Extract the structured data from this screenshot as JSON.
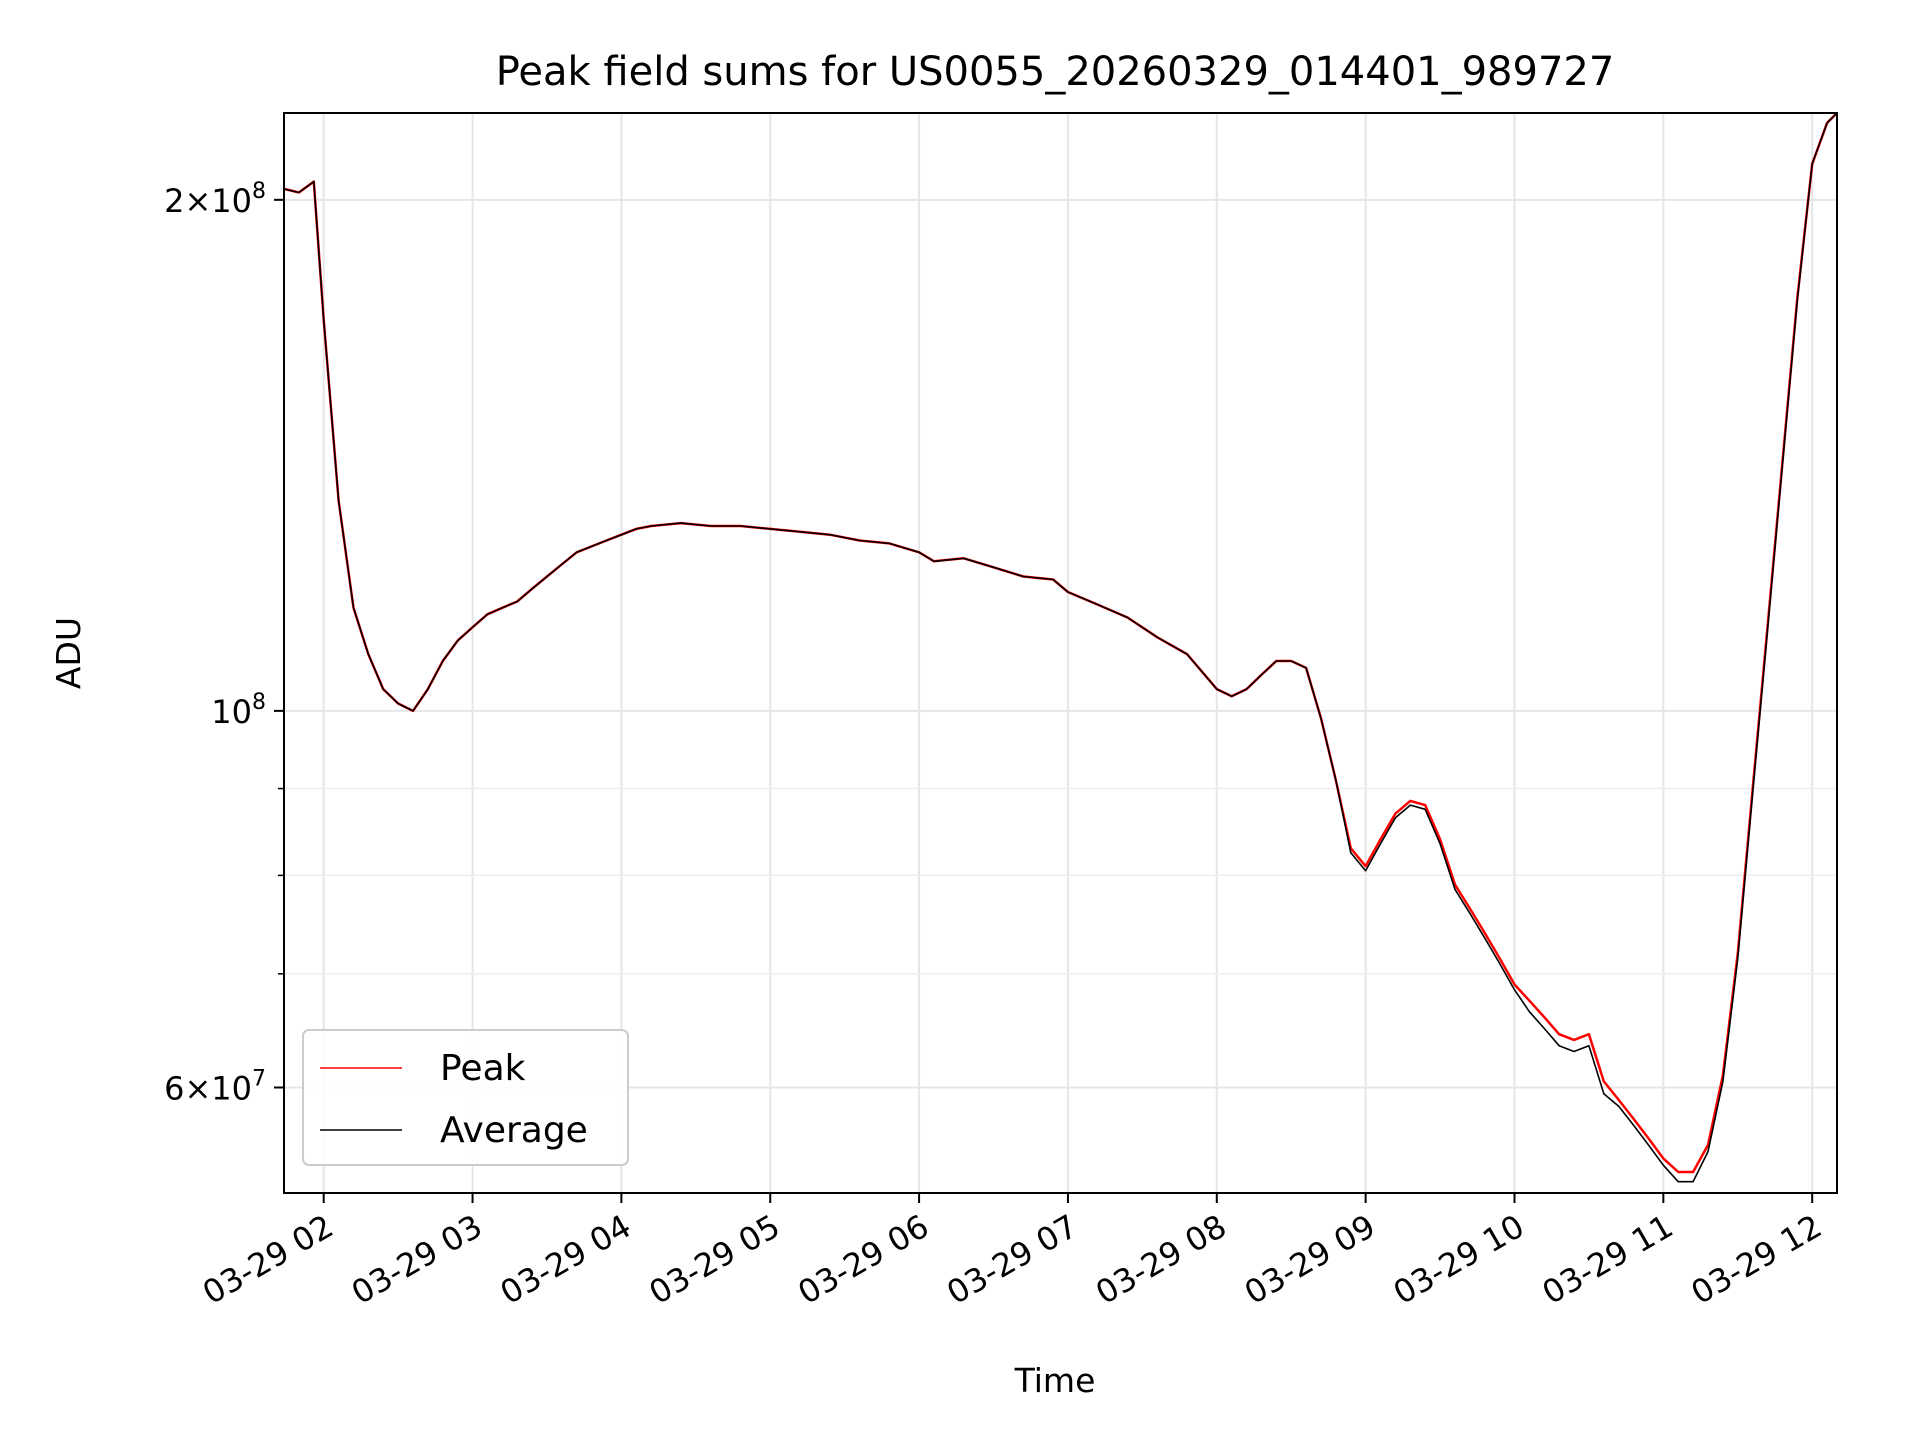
{
  "chart_data": {
    "type": "line",
    "title": "Peak field sums for US0055_20260329_014401_989727",
    "xlabel": "Time",
    "ylabel": "ADU",
    "yscale": "log",
    "grid": true,
    "legend_position": "lower-left",
    "x_ticks": [
      "03-29 02",
      "03-29 03",
      "03-29 04",
      "03-29 05",
      "03-29 06",
      "03-29 07",
      "03-29 08",
      "03-29 09",
      "03-29 10",
      "03-29 11",
      "03-29 12"
    ],
    "xlim": [
      "2026-03-29 01:44",
      "2026-03-29 12:10"
    ],
    "y_major_ticks": [
      {
        "value": 100000000,
        "base": "10",
        "exp": "8"
      },
      {
        "value": 60000000,
        "mantissa": "6",
        "base": "10",
        "exp": "7"
      },
      {
        "value": 200000000,
        "mantissa": "2",
        "base": "10",
        "exp": "8"
      }
    ],
    "y_minor_ticks": [
      70000000,
      80000000,
      90000000
    ],
    "ylim": [
      52000000,
      225000000
    ],
    "x": [
      "01:44",
      "01:50",
      "01:56",
      "02:00",
      "02:06",
      "02:12",
      "02:18",
      "02:24",
      "02:30",
      "02:36",
      "02:42",
      "02:48",
      "02:54",
      "03:00",
      "03:06",
      "03:12",
      "03:18",
      "03:24",
      "03:30",
      "03:36",
      "03:42",
      "03:48",
      "03:54",
      "04:00",
      "04:06",
      "04:12",
      "04:24",
      "04:36",
      "04:48",
      "05:00",
      "05:12",
      "05:24",
      "05:36",
      "05:48",
      "06:00",
      "06:06",
      "06:18",
      "06:30",
      "06:42",
      "06:54",
      "07:00",
      "07:12",
      "07:24",
      "07:36",
      "07:48",
      "08:00",
      "08:06",
      "08:12",
      "08:18",
      "08:24",
      "08:30",
      "08:36",
      "08:42",
      "08:48",
      "08:54",
      "09:00",
      "09:06",
      "09:12",
      "09:18",
      "09:24",
      "09:30",
      "09:36",
      "09:42",
      "09:48",
      "09:54",
      "10:00",
      "10:06",
      "10:12",
      "10:18",
      "10:24",
      "10:30",
      "10:36",
      "10:42",
      "10:48",
      "10:54",
      "11:00",
      "11:06",
      "11:12",
      "11:18",
      "11:24",
      "11:30",
      "11:36",
      "11:42",
      "11:48",
      "11:54",
      "12:00",
      "12:06",
      "12:10"
    ],
    "series": [
      {
        "name": "Peak",
        "color": "#ff0000",
        "values": [
          203000000,
          202000000,
          205000000,
          170000000,
          133000000,
          115000000,
          108000000,
          103000000,
          101000000,
          100000000,
          103000000,
          107000000,
          110000000,
          112000000,
          114000000,
          115000000,
          116000000,
          118000000,
          120000000,
          122000000,
          124000000,
          125000000,
          126000000,
          127000000,
          128000000,
          128500000,
          129000000,
          128500000,
          128500000,
          128000000,
          127500000,
          127000000,
          126000000,
          125500000,
          124000000,
          122500000,
          123000000,
          121500000,
          120000000,
          119500000,
          117500000,
          115500000,
          113500000,
          110500000,
          108000000,
          103000000,
          102000000,
          103000000,
          105000000,
          107000000,
          107000000,
          106000000,
          99000000,
          91000000,
          83000000,
          81000000,
          84000000,
          87000000,
          88500000,
          88000000,
          84000000,
          79000000,
          76500000,
          74000000,
          71500000,
          69000000,
          67500000,
          66000000,
          64500000,
          64000000,
          64500000,
          60500000,
          59000000,
          57500000,
          56000000,
          54500000,
          53500000,
          53500000,
          55500000,
          61000000,
          72000000,
          90000000,
          112000000,
          140000000,
          175000000,
          210000000,
          222000000,
          225000000
        ]
      },
      {
        "name": "Average",
        "color": "#000000",
        "values": [
          203000000,
          202000000,
          205000000,
          170000000,
          133000000,
          115000000,
          108000000,
          103000000,
          101000000,
          100000000,
          103000000,
          107000000,
          110000000,
          112000000,
          114000000,
          115000000,
          116000000,
          118000000,
          120000000,
          122000000,
          124000000,
          125000000,
          126000000,
          127000000,
          128000000,
          128500000,
          129000000,
          128500000,
          128500000,
          128000000,
          127500000,
          127000000,
          126000000,
          125500000,
          124000000,
          122500000,
          123000000,
          121500000,
          120000000,
          119500000,
          117500000,
          115500000,
          113500000,
          110500000,
          108000000,
          103000000,
          102000000,
          103000000,
          105000000,
          107000000,
          107000000,
          106000000,
          99000000,
          91000000,
          82500000,
          80500000,
          83500000,
          86500000,
          88000000,
          87500000,
          83500000,
          78500000,
          76000000,
          73500000,
          71000000,
          68500000,
          66500000,
          65000000,
          63500000,
          63000000,
          63500000,
          59500000,
          58500000,
          57000000,
          55500000,
          54000000,
          52800000,
          52800000,
          55000000,
          60500000,
          71500000,
          89500000,
          111500000,
          139500000,
          174500000,
          210000000,
          222000000,
          225000000
        ]
      }
    ]
  }
}
